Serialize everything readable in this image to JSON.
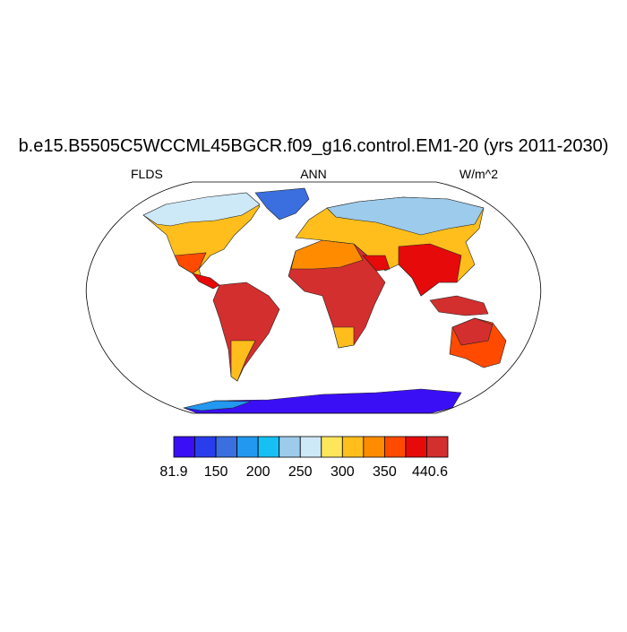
{
  "title": "b.e15.B5505C5WCCML45BGCR.f09_g16.control.EM1-20 (yrs 2011-2030)",
  "left_string": "FLDS",
  "center_string": "ANN",
  "right_string": "W/m^2",
  "colorbar": {
    "colors": [
      "#3b0ff5",
      "#2a3ded",
      "#3b6fe0",
      "#2298f0",
      "#16c0f5",
      "#9dcbeb",
      "#cde8f7",
      "#fde65a",
      "#ffbe1c",
      "#ff8c00",
      "#ff4a00",
      "#e60a0a",
      "#d32f2f"
    ],
    "labels": [
      81.9,
      150,
      200,
      250,
      300,
      350,
      440.6
    ]
  }
}
